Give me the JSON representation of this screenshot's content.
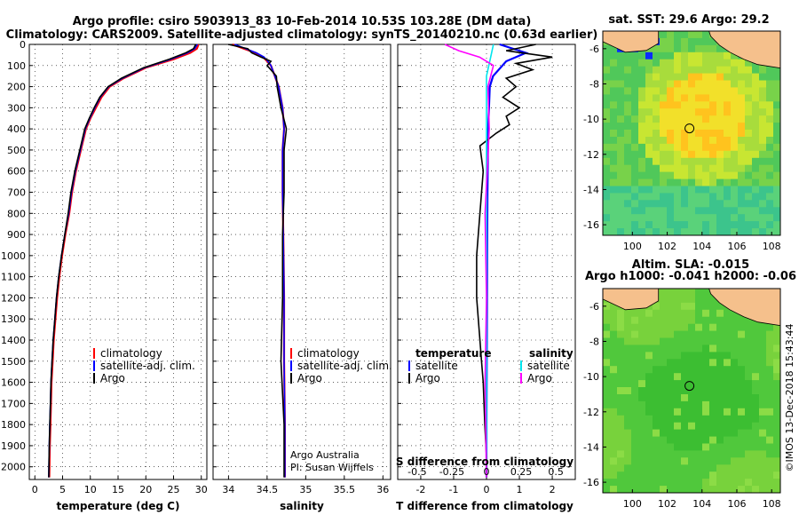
{
  "header": {
    "line1": "Argo profile: csiro 5903913_83 10-Feb-2014 10.53S 103.28E (DM data)",
    "line2": "Climatology: CARS2009. Satellite-adjusted climatology: synTS_20140210.nc (0.63d earlier)"
  },
  "depth_axis": {
    "ticks": [
      "0",
      "100",
      "200",
      "300",
      "400",
      "500",
      "600",
      "700",
      "800",
      "900",
      "1000",
      "1100",
      "1200",
      "1300",
      "1400",
      "1500",
      "1600",
      "1700",
      "1800",
      "1900",
      "2000"
    ],
    "range": [
      0,
      2060
    ]
  },
  "colors": {
    "climatology": "#ff0000",
    "satellite": "#0000ff",
    "argo": "#000000",
    "s_satellite": "#00e5ee",
    "s_argo": "#ff00ff"
  },
  "chart_data": [
    {
      "type": "line",
      "name": "temperature",
      "xlabel": "temperature (deg C)",
      "xlim": [
        -1,
        31
      ],
      "xticks": [
        "0",
        "5",
        "10",
        "15",
        "20",
        "25",
        "30"
      ],
      "legend": [
        "climatology",
        "satellite-adj. clim.",
        "Argo"
      ],
      "series": [
        {
          "name": "climatology",
          "x": [
            29.5,
            29.2,
            28,
            25,
            20,
            16,
            13.5,
            12,
            11,
            10,
            9.2,
            8.3,
            7.4,
            6.7,
            6.2,
            5.5,
            4.9,
            4.4,
            4.0,
            3.7,
            3.4,
            3.2,
            3.0,
            2.9,
            2.8,
            2.7,
            2.6
          ],
          "depth": [
            0,
            20,
            40,
            70,
            110,
            160,
            200,
            250,
            300,
            350,
            400,
            500,
            600,
            700,
            800,
            900,
            1000,
            1100,
            1200,
            1300,
            1400,
            1500,
            1600,
            1700,
            1800,
            1900,
            2050
          ]
        },
        {
          "name": "satellite-adj. clim.",
          "x": [
            29.3,
            28.8,
            27.5,
            24.5,
            19.8,
            15.8,
            13.3,
            11.8,
            10.8,
            9.9,
            9.1,
            8.2,
            7.3,
            6.6,
            6.1,
            5.4,
            4.8,
            4.3,
            3.9,
            3.6,
            3.3,
            3.1,
            2.9,
            2.8,
            2.7,
            2.6,
            2.5
          ],
          "depth": [
            0,
            20,
            40,
            70,
            110,
            160,
            200,
            250,
            300,
            350,
            400,
            500,
            600,
            700,
            800,
            900,
            1000,
            1100,
            1200,
            1300,
            1400,
            1500,
            1600,
            1700,
            1800,
            1900,
            2050
          ]
        },
        {
          "name": "Argo",
          "x": [
            29.0,
            28.6,
            27.2,
            24.2,
            19.6,
            15.6,
            13.2,
            11.7,
            10.7,
            9.8,
            9.0,
            8.1,
            7.2,
            6.5,
            6.0,
            5.4,
            4.8,
            4.3,
            3.9,
            3.6,
            3.3,
            3.1,
            2.9,
            2.8,
            2.7,
            2.6,
            2.5
          ],
          "depth": [
            0,
            20,
            40,
            70,
            110,
            160,
            200,
            250,
            300,
            350,
            400,
            500,
            600,
            700,
            800,
            900,
            1000,
            1100,
            1200,
            1300,
            1400,
            1500,
            1600,
            1700,
            1800,
            1900,
            2050
          ]
        }
      ]
    },
    {
      "type": "line",
      "name": "salinity",
      "xlabel": "salinity",
      "xlim": [
        33.8,
        36.1
      ],
      "xticks": [
        "34",
        "34.5",
        "35",
        "35.5",
        "36"
      ],
      "legend": [
        "climatology",
        "satellite-adj. clim.",
        "Argo"
      ],
      "credit": [
        "Argo Australia",
        "PI: Susan Wijffels"
      ],
      "series": [
        {
          "name": "climatology",
          "x": [
            34.05,
            34.2,
            34.35,
            34.45,
            34.5,
            34.55,
            34.6,
            34.65,
            34.7,
            34.72,
            34.7,
            34.7,
            34.71,
            34.72,
            34.72,
            34.73,
            34.73
          ],
          "depth": [
            0,
            20,
            40,
            60,
            80,
            100,
            150,
            200,
            300,
            400,
            500,
            700,
            900,
            1200,
            1500,
            1800,
            2050
          ]
        },
        {
          "name": "satellite-adj. clim.",
          "x": [
            34.08,
            34.22,
            34.36,
            34.46,
            34.51,
            34.55,
            34.6,
            34.65,
            34.7,
            34.72,
            34.7,
            34.7,
            34.71,
            34.72,
            34.72,
            34.73,
            34.73
          ],
          "depth": [
            0,
            20,
            40,
            60,
            80,
            100,
            150,
            200,
            300,
            400,
            500,
            700,
            900,
            1200,
            1500,
            1800,
            2050
          ]
        },
        {
          "name": "Argo",
          "x": [
            34.0,
            34.25,
            34.3,
            34.42,
            34.55,
            34.5,
            34.62,
            34.63,
            34.68,
            34.75,
            34.72,
            34.72,
            34.7,
            34.7,
            34.68,
            34.72,
            34.72
          ],
          "depth": [
            0,
            20,
            40,
            60,
            80,
            100,
            150,
            200,
            300,
            400,
            500,
            700,
            900,
            1200,
            1500,
            1800,
            2050
          ]
        }
      ]
    },
    {
      "type": "line",
      "name": "difference",
      "xlabel": "T difference from climatology",
      "xlabel2": "S difference from climatology",
      "xlim": [
        -2.7,
        2.7
      ],
      "xticks": [
        "-2",
        "-1",
        "0",
        "1",
        "2"
      ],
      "xticks2": [
        "-0.5",
        "-0.25",
        "0",
        "0.25",
        "0.5"
      ],
      "legend_t_title": "temperature",
      "legend_s_title": "salinity",
      "legend": [
        "satellite",
        "Argo"
      ],
      "series": [
        {
          "name": "T satellite",
          "x": [
            0.4,
            1.2,
            0.6,
            0.2,
            0.1,
            0.05,
            0.03,
            0.02,
            0.01,
            0.0,
            0.0
          ],
          "depth": [
            0,
            40,
            80,
            150,
            200,
            400,
            700,
            1000,
            1400,
            1800,
            2050
          ]
        },
        {
          "name": "T Argo",
          "x": [
            1.5,
            0.6,
            2.0,
            0.9,
            1.4,
            0.6,
            0.9,
            0.5,
            1.0,
            0.6,
            0.7,
            0.3,
            -0.2,
            -0.1,
            -0.2,
            -0.3,
            -0.3,
            -0.2,
            -0.15,
            -0.1,
            -0.05,
            0.0,
            0.0
          ],
          "depth": [
            0,
            30,
            60,
            90,
            120,
            160,
            200,
            250,
            300,
            340,
            380,
            420,
            480,
            600,
            800,
            1000,
            1200,
            1400,
            1500,
            1600,
            1800,
            1950,
            2050
          ]
        },
        {
          "name": "S satellite",
          "x": [
            0.05,
            0.03,
            0.0,
            0.0,
            0.0,
            0.0,
            0.0,
            0.0
          ],
          "depth": [
            0,
            60,
            150,
            400,
            800,
            1200,
            1600,
            2050
          ]
        },
        {
          "name": "S Argo",
          "x": [
            -0.3,
            -0.2,
            -0.05,
            0.05,
            0.01,
            0.02,
            -0.01,
            0.0,
            -0.01,
            0.0
          ],
          "depth": [
            0,
            30,
            60,
            100,
            200,
            400,
            800,
            1200,
            1600,
            2050
          ]
        }
      ]
    },
    {
      "type": "heatmap",
      "name": "sst-map",
      "title": "sat. SST: 29.6 Argo: 29.2",
      "xticks": [
        "100",
        "102",
        "104",
        "106",
        "108"
      ],
      "yticks": [
        "-6",
        "-8",
        "-10",
        "-12",
        "-14",
        "-16"
      ],
      "xlim": [
        98.3,
        108.5
      ],
      "ylim": [
        -16.6,
        -5.0
      ],
      "marker": [
        103.28,
        -10.53
      ]
    },
    {
      "type": "heatmap",
      "name": "sla-map",
      "title1": "Altim. SLA: -0.015",
      "title2": "Argo h1000: -0.041 h2000: -0.06",
      "xticks": [
        "100",
        "102",
        "104",
        "106",
        "108"
      ],
      "yticks": [
        "-6",
        "-8",
        "-10",
        "-12",
        "-14",
        "-16"
      ],
      "xlim": [
        98.3,
        108.5
      ],
      "ylim": [
        -16.6,
        -5.0
      ],
      "marker": [
        103.28,
        -10.53
      ]
    }
  ],
  "credit_vertical": "©IMOS 13-Dec-2018 15:43:44"
}
